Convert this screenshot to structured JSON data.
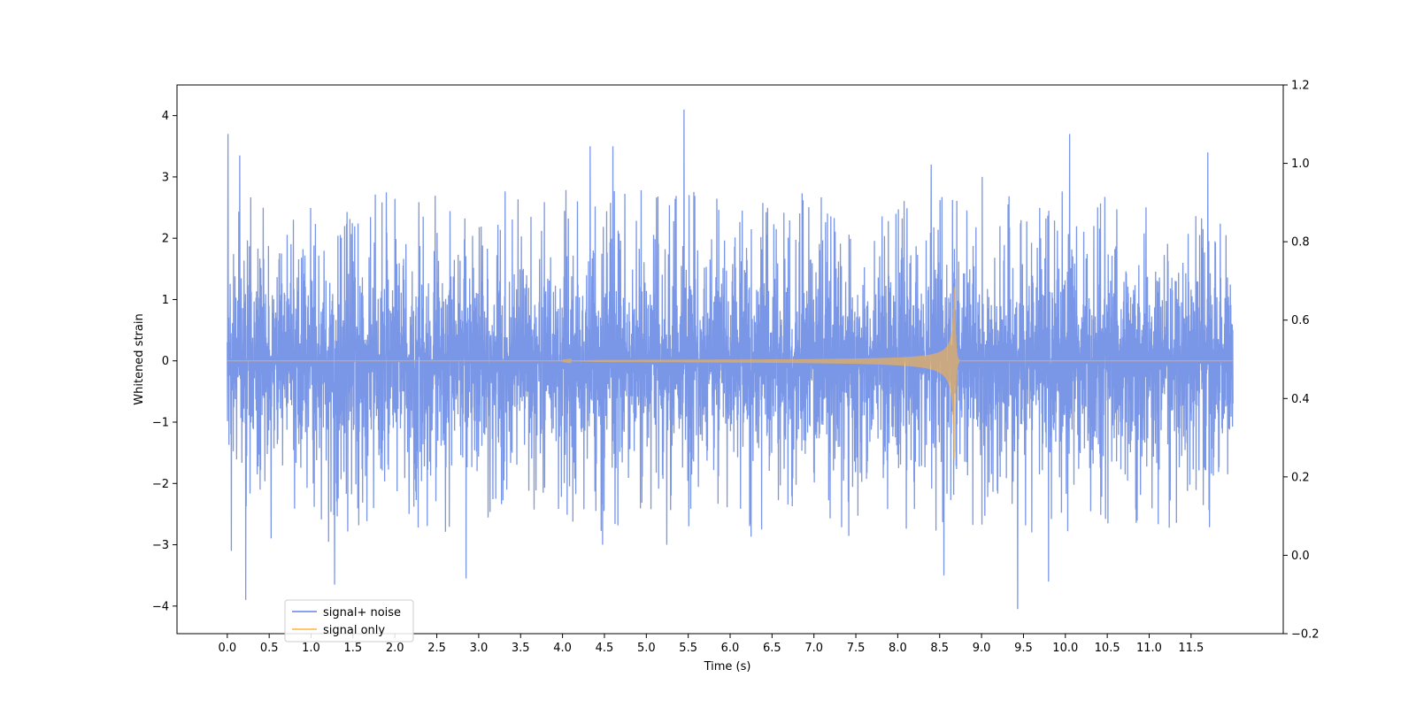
{
  "chart_data": {
    "type": "line",
    "title": "",
    "xlabel": "Time (s)",
    "ylabel": "Whitened strain",
    "xlim": [
      -0.6,
      12.6
    ],
    "ylim": [
      -4.45,
      4.5
    ],
    "y2lim": [
      -0.2,
      1.2
    ],
    "xticks": [
      0.0,
      0.5,
      1.0,
      1.5,
      2.0,
      2.5,
      3.0,
      3.5,
      4.0,
      4.5,
      5.0,
      5.5,
      6.0,
      6.5,
      7.0,
      7.5,
      8.0,
      8.5,
      9.0,
      9.5,
      10.0,
      10.5,
      11.0,
      11.5
    ],
    "xtick_labels": [
      "0.0",
      "0.5",
      "1.0",
      "1.5",
      "2.0",
      "2.5",
      "3.0",
      "3.5",
      "4.0",
      "4.5",
      "5.0",
      "5.5",
      "6.0",
      "6.5",
      "7.0",
      "7.5",
      "8.0",
      "8.5",
      "9.0",
      "9.5",
      "10.0",
      "10.5",
      "11.0",
      "11.5"
    ],
    "yticks": [
      -4,
      -3,
      -2,
      -1,
      0,
      1,
      2,
      3,
      4
    ],
    "ytick_labels": [
      "−4",
      "−3",
      "−2",
      "−1",
      "0",
      "1",
      "2",
      "3",
      "4"
    ],
    "y2ticks": [
      -0.2,
      0.0,
      0.2,
      0.4,
      0.6,
      0.8,
      1.0,
      1.2
    ],
    "y2tick_labels": [
      "−0.2",
      "0.0",
      "0.2",
      "0.4",
      "0.6",
      "0.8",
      "1.0",
      "1.2"
    ],
    "grid": false,
    "legend_position": "lower-left",
    "series": [
      {
        "name": "signal+ noise",
        "color": "#6384e2",
        "kind": "noise",
        "x_range": [
          0.0,
          12.0
        ],
        "typical_upper": 1.6,
        "typical_lower": -1.6,
        "spikes": [
          {
            "x": 0.01,
            "y": 3.7
          },
          {
            "x": 0.05,
            "y": -3.1
          },
          {
            "x": 0.15,
            "y": 3.35
          },
          {
            "x": 0.22,
            "y": -3.9
          },
          {
            "x": 1.28,
            "y": -3.65
          },
          {
            "x": 2.85,
            "y": -3.55
          },
          {
            "x": 4.33,
            "y": 3.5
          },
          {
            "x": 4.6,
            "y": 3.5
          },
          {
            "x": 5.45,
            "y": 4.1
          },
          {
            "x": 8.4,
            "y": 3.2
          },
          {
            "x": 8.55,
            "y": -3.5
          },
          {
            "x": 9.43,
            "y": -4.05
          },
          {
            "x": 9.8,
            "y": -3.6
          },
          {
            "x": 10.05,
            "y": 3.7
          },
          {
            "x": 11.7,
            "y": 3.4
          }
        ]
      },
      {
        "name": "signal only",
        "color": "#ffb640",
        "kind": "chirp",
        "x_range": [
          0.0,
          12.0
        ],
        "merger_time": 8.68,
        "peak_amplitude_upper": 1.2,
        "peak_amplitude_lower": -1.6
      }
    ]
  }
}
